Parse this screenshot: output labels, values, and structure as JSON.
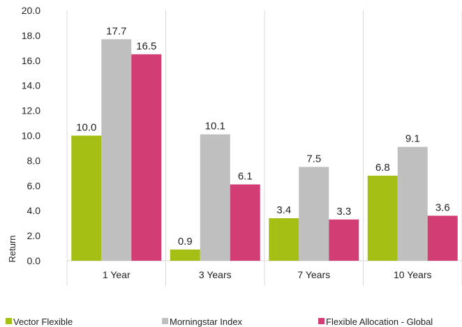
{
  "chart_data": {
    "type": "bar",
    "categories": [
      "1 Year",
      "3 Years",
      "7 Years",
      "10 Years"
    ],
    "series": [
      {
        "name": "Vector Flexible",
        "color": "#a5bf14",
        "values": [
          10.0,
          0.9,
          3.4,
          6.8
        ]
      },
      {
        "name": "Morningstar Index",
        "color": "#bfbfbf",
        "values": [
          17.7,
          10.1,
          7.5,
          9.1
        ]
      },
      {
        "name": "Flexible Allocation - Global",
        "color": "#d23e73",
        "values": [
          16.5,
          6.1,
          3.3,
          3.6
        ]
      }
    ],
    "data_labels": [
      [
        "10.0",
        "0.9",
        "3.4",
        "6.8"
      ],
      [
        "17.7",
        "10.1",
        "7.5",
        "9.1"
      ],
      [
        "16.5",
        "6.1",
        "3.3",
        "3.6"
      ]
    ],
    "yticks": [
      "0.0",
      "2.0",
      "4.0",
      "6.0",
      "8.0",
      "10.0",
      "12.0",
      "14.0",
      "16.0",
      "18.0",
      "20.0"
    ],
    "ylabel": "Return",
    "xlabel": "",
    "title": "",
    "ylim": [
      0,
      20
    ],
    "grid": "vertical-category-separators",
    "legend_position": "bottom"
  }
}
